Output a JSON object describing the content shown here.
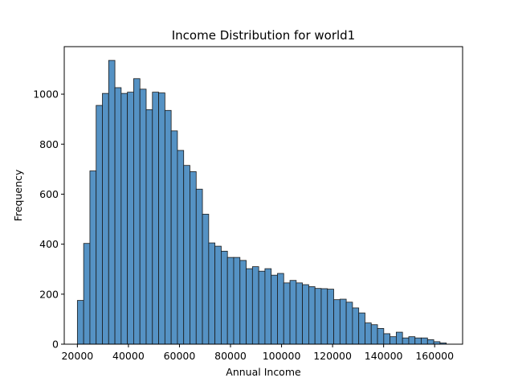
{
  "chart_data": {
    "type": "bar",
    "title": "Income Distribution for world1",
    "xlabel": "Annual Income",
    "ylabel": "Frequency",
    "xlim": [
      14850,
      170950
    ],
    "ylim": [
      0,
      1190
    ],
    "bin_start": 20000,
    "bin_width": 2450,
    "values": [
      175,
      403,
      693,
      955,
      1003,
      1135,
      1026,
      1003,
      1008,
      1062,
      1020,
      938,
      1008,
      1005,
      935,
      853,
      775,
      715,
      690,
      620,
      520,
      405,
      392,
      372,
      347,
      347,
      335,
      302,
      310,
      292,
      302,
      276,
      283,
      245,
      255,
      245,
      238,
      230,
      223,
      222,
      220,
      178,
      180,
      168,
      145,
      125,
      85,
      78,
      63,
      42,
      30,
      48,
      25,
      30,
      25,
      25,
      18,
      10,
      5
    ],
    "xticks": [
      20000,
      40000,
      60000,
      80000,
      100000,
      120000,
      140000,
      160000
    ],
    "xtick_labels": [
      "20000",
      "40000",
      "60000",
      "80000",
      "100000",
      "120000",
      "140000",
      "160000"
    ],
    "yticks": [
      0,
      200,
      400,
      600,
      800,
      1000
    ],
    "ytick_labels": [
      "0",
      "200",
      "400",
      "600",
      "800",
      "1000"
    ],
    "grid": false,
    "bar_color": "#5592c4",
    "edge_color": "#1a1a1a"
  }
}
